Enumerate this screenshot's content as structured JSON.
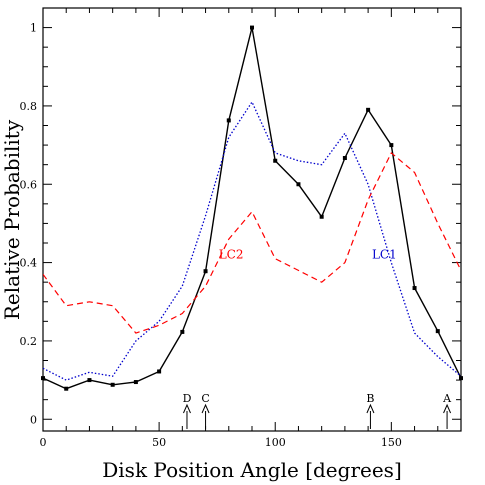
{
  "chart_data": {
    "type": "line",
    "title": "",
    "xlabel": "Disk Position Angle [degrees]",
    "ylabel": "Relative Probability",
    "xlim": [
      0,
      180
    ],
    "ylim": [
      -0.03,
      1.05
    ],
    "grid": false,
    "x_ticks": [
      0,
      50,
      100,
      150
    ],
    "x_tick_labels": [
      "0",
      "50",
      "100",
      "150"
    ],
    "y_ticks": [
      0,
      0.2,
      0.4,
      0.6,
      0.8,
      1
    ],
    "y_tick_labels": [
      "0",
      "0.2",
      "0.4",
      "0.6",
      "0.8",
      "1"
    ],
    "series": [
      {
        "name": "",
        "style": "solid-markers",
        "color": "#000000",
        "x": [
          0,
          10,
          20,
          30,
          40,
          50,
          60,
          70,
          80,
          90,
          100,
          110,
          120,
          130,
          140,
          150,
          160,
          170,
          180
        ],
        "y": [
          0.105,
          0.078,
          0.1,
          0.088,
          0.095,
          0.122,
          0.223,
          0.378,
          0.763,
          1.0,
          0.66,
          0.6,
          0.517,
          0.667,
          0.79,
          0.7,
          0.335,
          0.225,
          0.105
        ]
      },
      {
        "name": "LC1",
        "style": "dotted",
        "color": "#0000cc",
        "x": [
          0,
          10,
          20,
          30,
          40,
          50,
          60,
          70,
          80,
          90,
          100,
          110,
          120,
          130,
          140,
          150,
          160,
          170,
          180
        ],
        "y": [
          0.13,
          0.1,
          0.12,
          0.11,
          0.2,
          0.25,
          0.34,
          0.52,
          0.72,
          0.81,
          0.68,
          0.66,
          0.65,
          0.73,
          0.6,
          0.4,
          0.22,
          0.16,
          0.11
        ]
      },
      {
        "name": "LC2",
        "style": "dashed",
        "color": "#ff0000",
        "x": [
          0,
          10,
          20,
          30,
          40,
          50,
          60,
          70,
          80,
          90,
          100,
          110,
          120,
          130,
          140,
          150,
          160,
          170,
          180
        ],
        "y": [
          0.37,
          0.29,
          0.3,
          0.29,
          0.22,
          0.24,
          0.27,
          0.34,
          0.46,
          0.53,
          0.41,
          0.38,
          0.35,
          0.4,
          0.56,
          0.68,
          0.63,
          0.5,
          0.38
        ]
      }
    ],
    "series_labels": [
      {
        "text": "LC1",
        "color": "#0000cc",
        "x": 147,
        "y": 0.41
      },
      {
        "text": "LC2",
        "color": "#ff0000",
        "x": 81,
        "y": 0.41
      }
    ],
    "annotations": [
      {
        "text": "D",
        "x": 62
      },
      {
        "text": "C",
        "x": 70
      },
      {
        "text": "B",
        "x": 141
      },
      {
        "text": "A",
        "x": 174
      }
    ]
  }
}
